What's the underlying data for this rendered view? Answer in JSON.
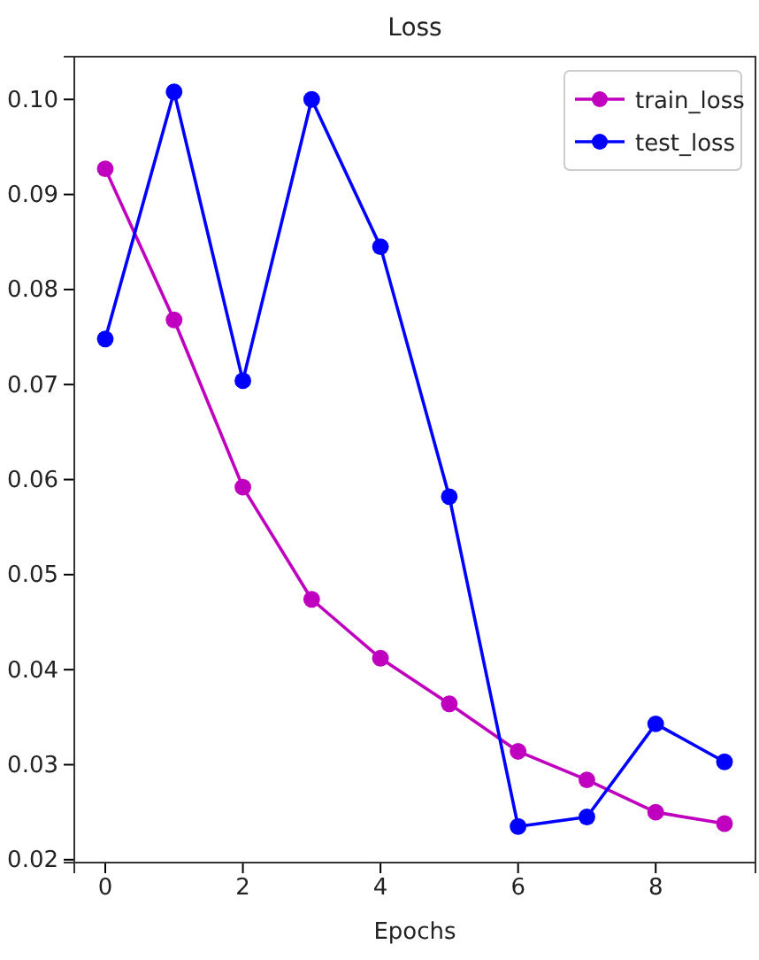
{
  "chart_data": {
    "type": "line",
    "title": "Loss",
    "xlabel": "Epochs",
    "x": [
      0,
      1,
      2,
      3,
      4,
      5,
      6,
      7,
      8,
      9
    ],
    "series": [
      {
        "name": "train_loss",
        "color": "#bf00bf",
        "values": [
          0.0927,
          0.0768,
          0.0592,
          0.0474,
          0.0412,
          0.0364,
          0.0314,
          0.0284,
          0.025,
          0.0238
        ]
      },
      {
        "name": "test_loss",
        "color": "#0000ff",
        "values": [
          0.0748,
          0.1008,
          0.0704,
          0.1,
          0.0845,
          0.0582,
          0.0235,
          0.0245,
          0.0343,
          0.0303
        ]
      }
    ],
    "xlim": [
      -0.45,
      9.45
    ],
    "xticks": [
      0,
      2,
      4,
      6,
      8
    ],
    "ylim": [
      0.0197,
      0.1045
    ],
    "yticks": [
      {
        "value": 0.02,
        "label": "0.02"
      },
      {
        "value": 0.03,
        "label": "0.03"
      },
      {
        "value": 0.04,
        "label": "0.04"
      },
      {
        "value": 0.05,
        "label": "0.05"
      },
      {
        "value": 0.06,
        "label": "0.06"
      },
      {
        "value": 0.07,
        "label": "0.07"
      },
      {
        "value": 0.08,
        "label": "0.08"
      },
      {
        "value": 0.09,
        "label": "0.09"
      },
      {
        "value": 0.1,
        "label": "0.10"
      }
    ],
    "legend": "top right",
    "marker": "circle",
    "line_style": "solid",
    "grid": false
  }
}
